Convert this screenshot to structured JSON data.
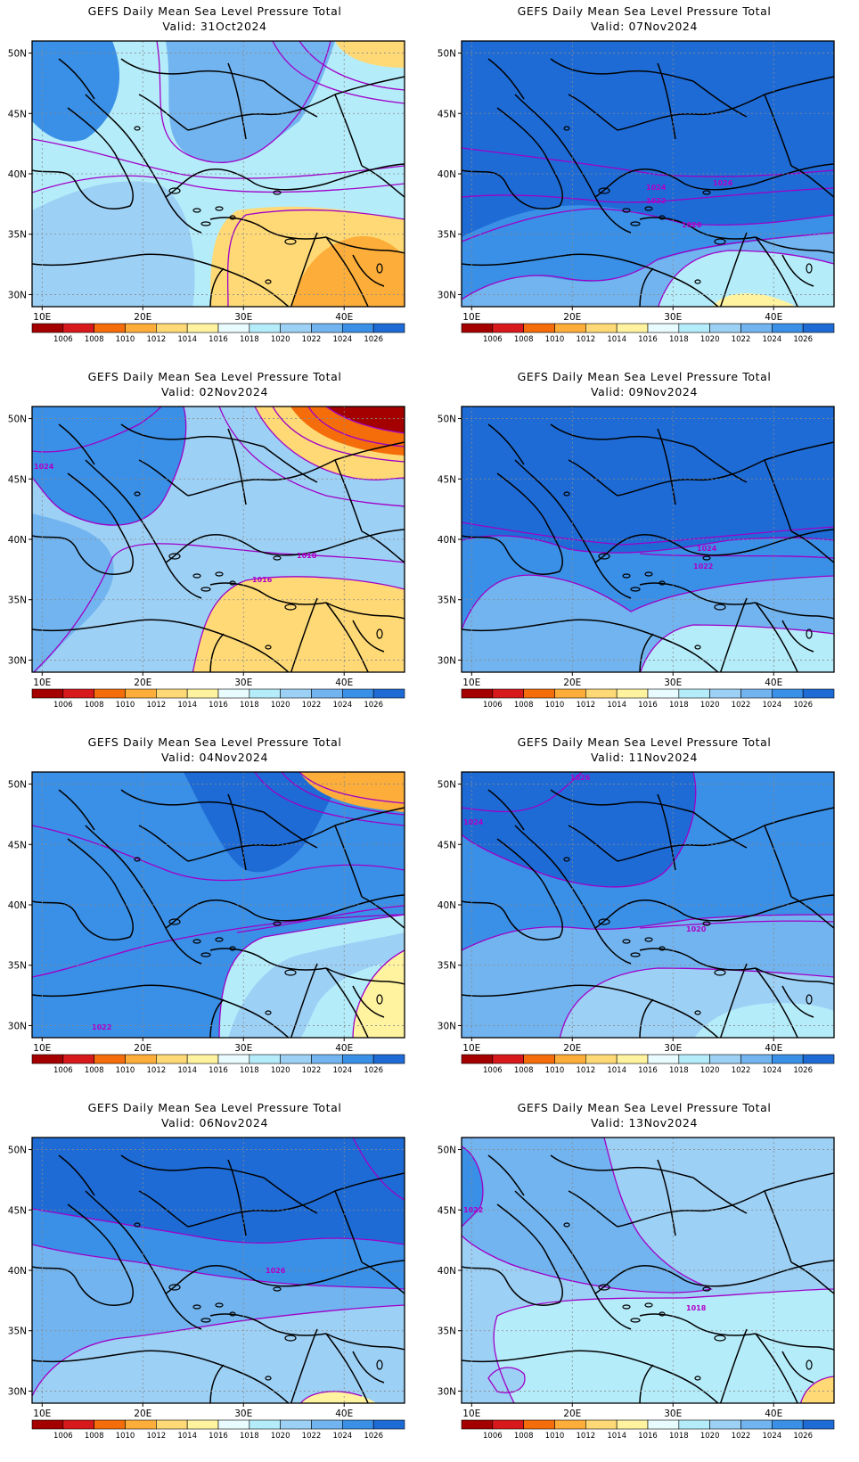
{
  "product_title": "GEFS Daily Mean Sea Level Pressure Total",
  "valid_prefix": "Valid:",
  "map": {
    "lon_range": [
      9,
      46
    ],
    "lat_range": [
      29,
      51
    ],
    "lon_ticks": [
      10,
      20,
      30,
      40
    ],
    "lon_tick_labels": [
      "10E",
      "20E",
      "30E",
      "40E"
    ],
    "lat_ticks": [
      30,
      35,
      40,
      45,
      50
    ],
    "lat_tick_labels": [
      "30N",
      "35N",
      "40N",
      "45N",
      "50N"
    ],
    "grid": true,
    "contour_color": "#a000c8",
    "coastline_color": "#000000",
    "units": "hPa"
  },
  "colorbar": {
    "labels": [
      "1006",
      "1008",
      "1010",
      "1012",
      "1014",
      "1016",
      "1018",
      "1020",
      "1022",
      "1024",
      "1026"
    ],
    "colors": [
      "#a50000",
      "#d7191c",
      "#f46d0a",
      "#fdae3a",
      "#fed976",
      "#fff3a0",
      "#e8fbff",
      "#b5ecfa",
      "#9dd0f5",
      "#72b4ef",
      "#3a8fe6",
      "#1e6bd6"
    ]
  },
  "panels": [
    {
      "valid": "31Oct2024",
      "labels": []
    },
    {
      "valid": "07Nov2024",
      "labels": [
        "1024",
        "1022",
        "1020",
        "1026"
      ]
    },
    {
      "valid": "02Nov2024",
      "labels": [
        "1024",
        "1018",
        "1016"
      ]
    },
    {
      "valid": "09Nov2024",
      "labels": [
        "1024",
        "1022"
      ]
    },
    {
      "valid": "04Nov2024",
      "labels": [
        "1022"
      ]
    },
    {
      "valid": "11Nov2024",
      "labels": [
        "1026",
        "1024",
        "1020"
      ]
    },
    {
      "valid": "06Nov2024",
      "labels": [
        "1026"
      ]
    },
    {
      "valid": "13Nov2024",
      "labels": [
        "1022",
        "1018"
      ]
    }
  ]
}
